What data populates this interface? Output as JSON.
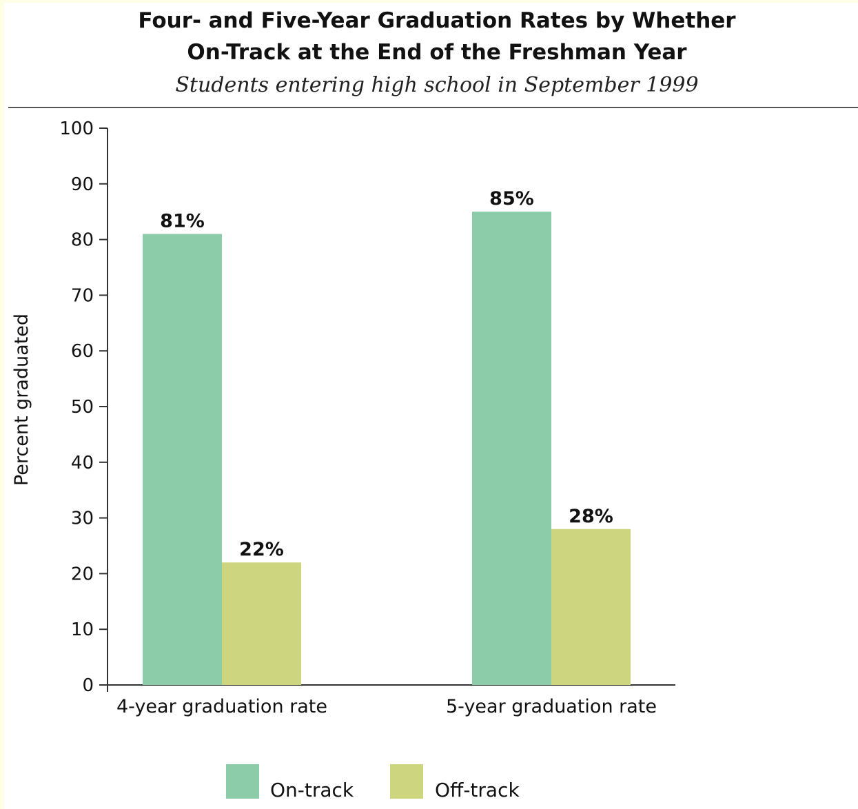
{
  "chart_data": {
    "type": "bar",
    "title_lines": [
      "Four- and Five-Year Graduation Rates by Whether",
      "On-Track at the End of the Freshman Year"
    ],
    "subtitle": "Students entering high school in September 1999",
    "xlabel": "",
    "ylabel": "Percent graduated",
    "ylim": [
      0,
      100
    ],
    "yticks": [
      0,
      10,
      20,
      30,
      40,
      50,
      60,
      70,
      80,
      90,
      100
    ],
    "categories": [
      "4-year graduation rate",
      "5-year graduation rate"
    ],
    "series": [
      {
        "name": "On-track",
        "color": "#8dcca8",
        "values": [
          81,
          85
        ],
        "labels": [
          "81%",
          "85%"
        ]
      },
      {
        "name": "Off-track",
        "color": "#cdd67e",
        "values": [
          22,
          28
        ],
        "labels": [
          "22%",
          "28%"
        ]
      }
    ],
    "grid": false,
    "legend_position": "bottom"
  }
}
